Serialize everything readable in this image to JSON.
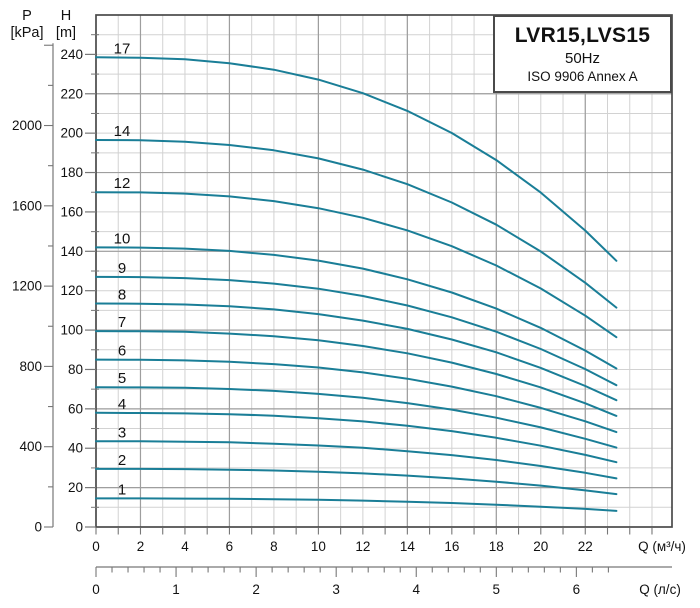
{
  "title_box": {
    "model": "LVR15,LVS15",
    "frequency": "50Hz",
    "standard": "ISO 9906 Annex A"
  },
  "axes": {
    "pressure": {
      "name": "P",
      "unit": "[kPa]",
      "tick_labels": [
        0,
        400,
        800,
        1200,
        1600,
        2000
      ],
      "minor_tick_step": 200,
      "max_tick": 2400,
      "kpa_per_m": 9.81
    },
    "head": {
      "name": "H",
      "unit": "[m]",
      "tick_labels": [
        0,
        20,
        40,
        60,
        80,
        100,
        120,
        140,
        160,
        180,
        200,
        220,
        240
      ],
      "minor_tick_step": 10,
      "max": 260
    },
    "flow_m3h": {
      "label": "Q (м³/ч)",
      "tick_labels": [
        0,
        2,
        4,
        6,
        8,
        10,
        12,
        14,
        16,
        18,
        20,
        22
      ],
      "minor_tick_step": 1,
      "max_tick": 25
    },
    "flow_ls": {
      "label": "Q (л/с)",
      "tick_labels": [
        0,
        1,
        2,
        3,
        4,
        5,
        6
      ],
      "minor_tick_step": 0.2,
      "max_tick": 6.4,
      "m3h_per_ls": 3.6
    }
  },
  "chart_data": {
    "type": "line",
    "title": "LVR15,LVS15 50Hz ISO 9906 Annex A",
    "xlabel": "Q (м³/ч)",
    "xlabel_secondary": "Q (л/с)",
    "ylabel": "H [m]",
    "ylabel_secondary": "P [kPa]",
    "xlim": [
      0,
      25.9
    ],
    "ylim": [
      0,
      260
    ],
    "grid": "on",
    "grid_x_major": [
      2,
      6,
      10,
      14,
      18,
      22
    ],
    "grid_y_major": [
      20,
      60,
      100,
      140,
      180,
      220
    ],
    "x": [
      0,
      2,
      4,
      6,
      8,
      10,
      12,
      14,
      16,
      18,
      20,
      22,
      23.4
    ],
    "series": [
      {
        "name": "1",
        "values": [
          14.5,
          14.5,
          14.4,
          14.3,
          14.1,
          13.8,
          13.4,
          12.8,
          12.2,
          11.3,
          10.3,
          9.2,
          8.2
        ]
      },
      {
        "name": "2",
        "values": [
          29.5,
          29.5,
          29.4,
          29.1,
          28.7,
          28.1,
          27.2,
          26.1,
          24.7,
          23.0,
          21.0,
          18.6,
          16.7
        ]
      },
      {
        "name": "3",
        "values": [
          43.5,
          43.5,
          43.3,
          43.0,
          42.3,
          41.4,
          40.2,
          38.5,
          36.5,
          34.0,
          31.0,
          27.5,
          24.7
        ]
      },
      {
        "name": "4",
        "values": [
          58.0,
          57.9,
          57.7,
          57.3,
          56.5,
          55.2,
          53.6,
          51.4,
          48.7,
          45.3,
          41.3,
          36.6,
          32.9
        ]
      },
      {
        "name": "5",
        "values": [
          71.0,
          70.9,
          70.7,
          70.1,
          69.1,
          67.6,
          65.6,
          62.9,
          59.6,
          55.5,
          50.6,
          44.8,
          40.3
        ]
      },
      {
        "name": "6",
        "values": [
          85.0,
          84.9,
          84.6,
          83.9,
          82.7,
          81.0,
          78.5,
          75.3,
          71.3,
          66.4,
          60.5,
          53.7,
          48.2
        ]
      },
      {
        "name": "7",
        "values": [
          99.5,
          99.4,
          99.1,
          98.2,
          96.9,
          94.8,
          91.9,
          88.2,
          83.5,
          77.7,
          70.9,
          62.8,
          56.4
        ]
      },
      {
        "name": "8",
        "values": [
          113.5,
          113.4,
          113.0,
          112.1,
          110.5,
          108.1,
          104.8,
          100.6,
          95.2,
          88.7,
          80.8,
          71.6,
          64.4
        ]
      },
      {
        "name": "9",
        "values": [
          127.0,
          126.9,
          126.4,
          125.4,
          123.6,
          121.0,
          117.3,
          112.5,
          106.5,
          99.2,
          90.4,
          80.2,
          72.0
        ]
      },
      {
        "name": "10",
        "values": [
          142.0,
          141.9,
          141.4,
          140.2,
          138.2,
          135.3,
          131.2,
          125.8,
          119.1,
          110.9,
          101.1,
          89.6,
          80.5
        ]
      },
      {
        "name": "12",
        "values": [
          170.0,
          169.9,
          169.3,
          167.9,
          165.5,
          161.9,
          157.0,
          150.6,
          142.6,
          132.8,
          121.1,
          107.3,
          96.4
        ]
      },
      {
        "name": "14",
        "values": [
          196.5,
          196.4,
          195.6,
          194.0,
          191.3,
          187.2,
          181.5,
          174.1,
          164.8,
          153.5,
          139.9,
          124.0,
          111.4
        ]
      },
      {
        "name": "17",
        "values": [
          238.5,
          238.3,
          237.5,
          235.5,
          232.2,
          227.2,
          220.3,
          211.3,
          200.1,
          186.3,
          169.8,
          150.5,
          135.2
        ]
      }
    ]
  },
  "colors": {
    "curve": "#1a7e97",
    "grid_minor": "#d2d2d2",
    "grid_major": "#9e9e9e",
    "frame": "#4a4a4a",
    "tick": "#777777",
    "text": "#111111"
  }
}
